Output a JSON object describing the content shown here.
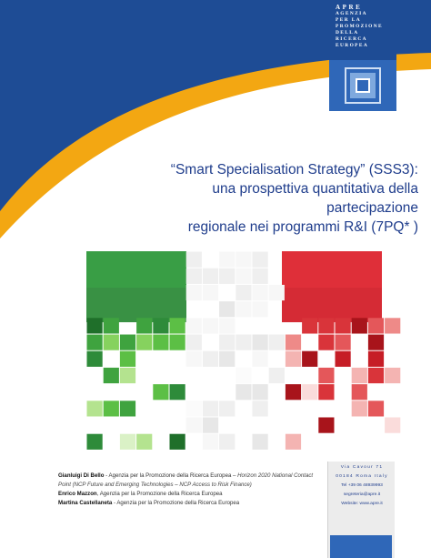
{
  "logo": {
    "brand": "APRE",
    "lines": [
      "AGENZIA",
      "PER  LA",
      "PROMOZIONE",
      "DELLA",
      "RICERCA",
      "EUROPEA"
    ]
  },
  "title": {
    "line1": "“Smart Specialisation Strategy” (SSS3):",
    "line2": "una prospettiva quantitativa della partecipazione",
    "line3": "regionale nei programmi R&I (7PQ* )"
  },
  "authors": [
    {
      "name": "Gianluigi Di Bello",
      "org": " - Agenzia per la Promozione della Ricerca Europea – ",
      "role": "Horizon 2020 National Contact Point (NCP Future and Emerging Technologies – NCP Access to Risk Finance)"
    },
    {
      "name": "Enrico Mazzon",
      "org": ", Agenzia per la Promozione della Ricerca Europea",
      "role": ""
    },
    {
      "name": "Martina Castellaneta",
      "org": " - Agenzia per la Promozione della Ricerca Europea",
      "role": ""
    }
  ],
  "contact": {
    "street": "Via Cavour 71",
    "city": "00184 Roma Italy",
    "tel": "Tel +39 06 48939993",
    "email": "segreteria@apre.it",
    "website": "Website: www.apre.it"
  },
  "colors": {
    "navy": "#1e4c95",
    "gold": "#f3a712",
    "title": "#1f3d8c",
    "green": "#2e8b3a",
    "red": "#d3202a"
  }
}
